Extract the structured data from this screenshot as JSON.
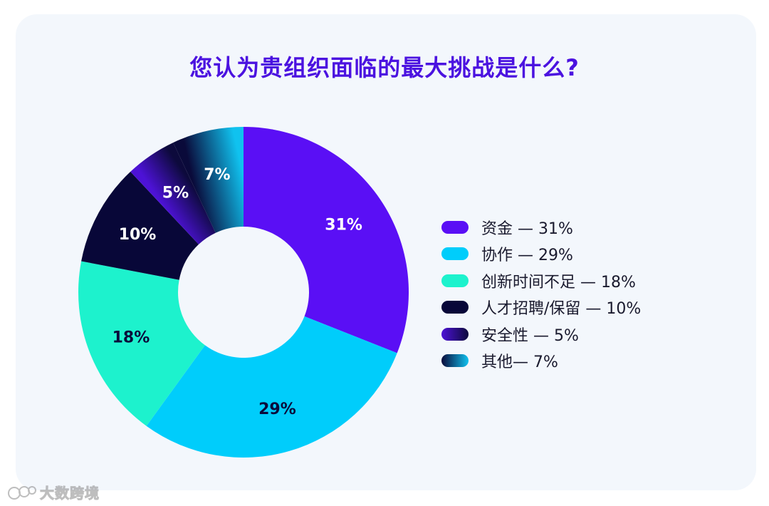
{
  "chart_data": {
    "type": "pie",
    "donut": true,
    "title": "您认为贵组织面临的最大挑战是什么?",
    "slices": [
      {
        "label": "资金 — 31%",
        "value": 31,
        "display": "31%",
        "color": "#5a0ff5",
        "label_color": "#ffffff"
      },
      {
        "label": "协作 — 29%",
        "value": 29,
        "display": "29%",
        "color": "#00cdfb",
        "label_color": "#0a0a3a"
      },
      {
        "label": "创新时间不足 — 18%",
        "value": 18,
        "display": "18%",
        "color": "#1df2cd",
        "label_color": "#0a0a3a"
      },
      {
        "label": "人才招聘/保留 — 10%",
        "value": 10,
        "display": "10%",
        "color": "#080738",
        "label_color": "#ffffff"
      },
      {
        "label": "安全性 — 5%",
        "value": 5,
        "display": "5%",
        "color": "#4d12d6",
        "gradient_to": "#0d0a3c",
        "label_color": "#ffffff"
      },
      {
        "label": "其他— 7%",
        "value": 7,
        "display": "7%",
        "color": "#0a0a3a",
        "gradient_to": "#10c2ef",
        "label_color": "#ffffff"
      }
    ],
    "legend_position": "right"
  },
  "watermark": {
    "text": "大数跨境"
  }
}
